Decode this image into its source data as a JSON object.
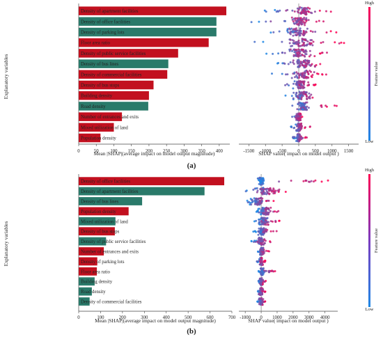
{
  "colors": {
    "bar_red": "#c2101f",
    "bar_green": "#2a7a6a",
    "beeswarm_low": "#1e88e5",
    "beeswarm_high": "#ff0052"
  },
  "chart_data": [
    {
      "panel": "a",
      "type": "bar",
      "caption": "(a)",
      "ylabel": "Explanatory variables",
      "xlabel": "Mean |SHAP|(average impact on model output magnitude)",
      "xlim": [
        0,
        430
      ],
      "xticks": [
        "0",
        "50",
        "100",
        "150",
        "200",
        "250",
        "300",
        "350",
        "400"
      ],
      "categories": [
        "Density of apartment facilities",
        "Density of office facilities",
        "Density of parking lots",
        "Floor area ratio",
        "Density of public service facilities",
        "Density of bus lines",
        "Density of commercial facilities",
        "Density of bus stops",
        "Building density",
        "Road density",
        "Number of entrances and exits",
        "Mixed utilization of land",
        "Population density"
      ],
      "values": [
        420,
        392,
        392,
        370,
        283,
        255,
        252,
        213,
        200,
        198,
        123,
        100,
        62
      ],
      "bar_colors": [
        "red",
        "green",
        "green",
        "red",
        "red",
        "green",
        "red",
        "red",
        "red",
        "green",
        "red",
        "red",
        "red"
      ]
    },
    {
      "panel": "a",
      "type": "scatter",
      "xlabel": "SHAP value( impact on model output )",
      "xlim": [
        -1800,
        1800
      ],
      "xticks": [
        "-1500",
        "-1000",
        "-500",
        "0",
        "500",
        "1000",
        "1500"
      ],
      "colorbar": {
        "title": "Feature value",
        "high": "High",
        "low": "Low"
      },
      "rows": [
        {
          "min": -1150,
          "max": 1100,
          "core": [
            -150,
            450
          ]
        },
        {
          "min": -1450,
          "max": 1050,
          "core": [
            -300,
            350
          ]
        },
        {
          "min": -900,
          "max": 1200,
          "core": [
            -500,
            400
          ]
        },
        {
          "min": -1500,
          "max": 1500,
          "core": [
            -350,
            600
          ]
        },
        {
          "min": -1000,
          "max": 900,
          "core": [
            -400,
            500
          ]
        },
        {
          "min": -850,
          "max": 1100,
          "core": [
            -300,
            600
          ]
        },
        {
          "min": -850,
          "max": 900,
          "core": [
            -250,
            500
          ]
        },
        {
          "min": -550,
          "max": 550,
          "core": [
            -200,
            300
          ]
        },
        {
          "min": -400,
          "max": 750,
          "core": [
            -200,
            450
          ]
        },
        {
          "min": -350,
          "max": 1200,
          "core": [
            -100,
            350
          ]
        },
        {
          "min": -250,
          "max": 200,
          "core": [
            -100,
            100
          ]
        },
        {
          "min": -250,
          "max": 350,
          "core": [
            -100,
            150
          ]
        },
        {
          "min": -200,
          "max": 250,
          "core": [
            -100,
            100
          ]
        }
      ]
    },
    {
      "panel": "b",
      "type": "bar",
      "caption": "(b)",
      "ylabel": "Explanatory variables",
      "xlabel": "Mean |SHAP|(average impact on model output magnitude)",
      "xlim": [
        0,
        700
      ],
      "xticks": [
        "0",
        "100",
        "200",
        "300",
        "400",
        "500",
        "600",
        "700"
      ],
      "categories": [
        "Density of office facilities",
        "Density of apartment facilities",
        "Density of bus lines",
        "Population density",
        "Mixed utilization of land",
        "Density of bus stops",
        "Density of public service facilities",
        "Number of entrances and exits",
        "Density of parking lots",
        "Floor area ratio",
        "Building density",
        "Road density",
        "Density of commercial facilities"
      ],
      "values": [
        665,
        575,
        290,
        228,
        168,
        165,
        125,
        115,
        85,
        83,
        73,
        60,
        50
      ],
      "bar_colors": [
        "red",
        "green",
        "green",
        "red",
        "green",
        "red",
        "green",
        "red",
        "red",
        "red",
        "green",
        "green",
        "green"
      ]
    },
    {
      "panel": "b",
      "type": "scatter",
      "xlabel": "SHAP value( impact on model output )",
      "xlim": [
        -1400,
        4800
      ],
      "xticks": [
        "-1000",
        "0",
        "1000",
        "2000",
        "3000",
        "4000"
      ],
      "colorbar": {
        "title": "Feature value",
        "high": "High",
        "low": "Low"
      },
      "rows": [
        {
          "min": -400,
          "max": 4600,
          "core": [
            -250,
            250
          ]
        },
        {
          "min": -1000,
          "max": 1700,
          "core": [
            -600,
            1300
          ]
        },
        {
          "min": -900,
          "max": 1100,
          "core": [
            -850,
            300
          ]
        },
        {
          "min": -300,
          "max": 1100,
          "core": [
            -200,
            700
          ]
        },
        {
          "min": -700,
          "max": 1500,
          "core": [
            -300,
            600
          ]
        },
        {
          "min": -500,
          "max": 1100,
          "core": [
            -250,
            400
          ]
        },
        {
          "min": -700,
          "max": 700,
          "core": [
            -250,
            250
          ]
        },
        {
          "min": -300,
          "max": 500,
          "core": [
            -150,
            250
          ]
        },
        {
          "min": -300,
          "max": 300,
          "core": [
            -120,
            120
          ]
        },
        {
          "min": -200,
          "max": 900,
          "core": [
            -100,
            200
          ]
        },
        {
          "min": -250,
          "max": 300,
          "core": [
            -150,
            150
          ]
        },
        {
          "min": -300,
          "max": 300,
          "core": [
            -150,
            150
          ]
        },
        {
          "min": -250,
          "max": 300,
          "core": [
            -150,
            150
          ]
        }
      ]
    }
  ]
}
